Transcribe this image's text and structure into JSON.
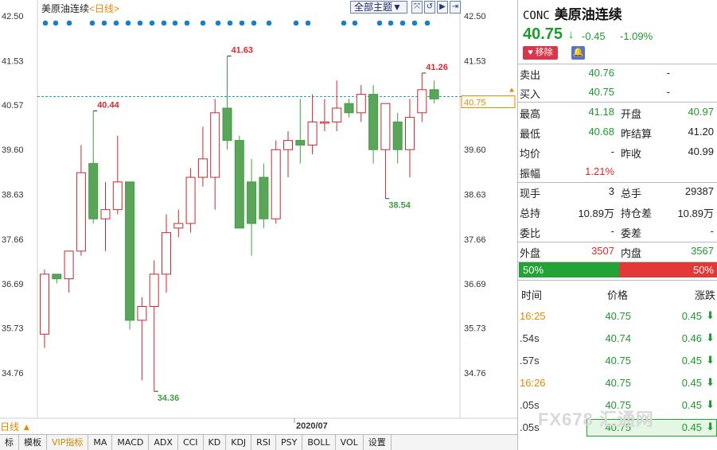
{
  "chart_header": {
    "name": "美原油连续",
    "period": "<日线>",
    "theme_select": "全部主题▼",
    "tools": [
      "⤧",
      "↺",
      "▶",
      "⇥"
    ]
  },
  "chart_data": {
    "type": "candlestick",
    "title": "美原油连续",
    "y_ticks": [
      42.5,
      41.53,
      40.57,
      39.6,
      38.63,
      37.66,
      36.69,
      35.73,
      34.76
    ],
    "ylim": [
      34.0,
      42.5
    ],
    "x_label": "2020/07",
    "current_price_line": 40.75,
    "current_price_label": "40.75",
    "annotations": [
      {
        "text": "41.63",
        "value": 41.63,
        "type": "high"
      },
      {
        "text": "40.44",
        "value": 40.44,
        "type": "high"
      },
      {
        "text": "41.26",
        "value": 41.26,
        "type": "high"
      },
      {
        "text": "34.36",
        "value": 34.36,
        "type": "low"
      },
      {
        "text": "38.54",
        "value": 38.54,
        "type": "low"
      }
    ],
    "candles": [
      {
        "o": 35.6,
        "h": 37.0,
        "l": 35.3,
        "c": 36.9
      },
      {
        "o": 36.9,
        "h": 36.9,
        "l": 36.7,
        "c": 36.8
      },
      {
        "o": 36.8,
        "h": 37.4,
        "l": 36.5,
        "c": 37.4
      },
      {
        "o": 37.4,
        "h": 39.7,
        "l": 37.3,
        "c": 39.1
      },
      {
        "o": 39.3,
        "h": 40.44,
        "l": 38.0,
        "c": 38.1
      },
      {
        "o": 38.1,
        "h": 38.9,
        "l": 37.4,
        "c": 38.3
      },
      {
        "o": 38.3,
        "h": 39.9,
        "l": 38.2,
        "c": 38.9
      },
      {
        "o": 38.9,
        "h": 38.9,
        "l": 35.7,
        "c": 35.9
      },
      {
        "o": 35.9,
        "h": 36.4,
        "l": 34.6,
        "c": 36.2
      },
      {
        "o": 36.2,
        "h": 37.2,
        "l": 34.36,
        "c": 36.9
      },
      {
        "o": 36.9,
        "h": 38.2,
        "l": 36.5,
        "c": 37.8
      },
      {
        "o": 37.9,
        "h": 38.3,
        "l": 37.7,
        "c": 38.0
      },
      {
        "o": 38.0,
        "h": 39.2,
        "l": 37.8,
        "c": 39.0
      },
      {
        "o": 39.0,
        "h": 40.1,
        "l": 38.8,
        "c": 39.4
      },
      {
        "o": 39.0,
        "h": 40.7,
        "l": 38.3,
        "c": 40.4
      },
      {
        "o": 40.5,
        "h": 41.63,
        "l": 39.6,
        "c": 39.8
      },
      {
        "o": 39.8,
        "h": 39.9,
        "l": 37.9,
        "c": 37.9
      },
      {
        "o": 38.9,
        "h": 39.4,
        "l": 37.3,
        "c": 38.0
      },
      {
        "o": 39.0,
        "h": 39.3,
        "l": 37.9,
        "c": 38.1
      },
      {
        "o": 38.1,
        "h": 39.8,
        "l": 38.0,
        "c": 39.6
      },
      {
        "o": 39.6,
        "h": 40.0,
        "l": 39.0,
        "c": 39.8
      },
      {
        "o": 39.8,
        "h": 40.7,
        "l": 39.3,
        "c": 39.7
      },
      {
        "o": 39.7,
        "h": 40.8,
        "l": 39.5,
        "c": 40.2
      },
      {
        "o": 40.2,
        "h": 40.7,
        "l": 40.0,
        "c": 40.2
      },
      {
        "o": 40.2,
        "h": 41.1,
        "l": 40.0,
        "c": 40.5
      },
      {
        "o": 40.6,
        "h": 40.7,
        "l": 40.3,
        "c": 40.4
      },
      {
        "o": 40.4,
        "h": 41.0,
        "l": 40.2,
        "c": 40.8
      },
      {
        "o": 40.8,
        "h": 41.0,
        "l": 39.3,
        "c": 39.6
      },
      {
        "o": 39.6,
        "h": 40.6,
        "l": 38.54,
        "c": 40.6
      },
      {
        "o": 40.2,
        "h": 40.4,
        "l": 39.3,
        "c": 39.6
      },
      {
        "o": 39.6,
        "h": 40.7,
        "l": 39.0,
        "c": 40.3
      },
      {
        "o": 40.4,
        "h": 41.26,
        "l": 40.2,
        "c": 40.9
      },
      {
        "o": 40.9,
        "h": 41.1,
        "l": 40.6,
        "c": 40.7
      }
    ]
  },
  "bottom_toolbar": {
    "daily_label": "日线 ▲",
    "items": [
      "标",
      "模板",
      "VIP指标",
      "MA",
      "MACD",
      "ADX",
      "CCI",
      "KD",
      "KDJ",
      "RSI",
      "PSY",
      "BOLL",
      "VOL",
      "设置"
    ]
  },
  "panel": {
    "code": "CONC",
    "name": "美原油连续",
    "price": "40.75",
    "arrow": "↓",
    "change": "-0.45",
    "change_pct": "-1.09%",
    "remove_btn": "♥ 移除",
    "bell_icon": "🔔",
    "sell": {
      "label": "卖出",
      "value": "40.76",
      "extra": "-"
    },
    "buy": {
      "label": "买入",
      "value": "40.75",
      "extra": "-"
    },
    "stats": [
      {
        "l1": "最高",
        "v1": "41.18",
        "c1": "green",
        "l2": "开盘",
        "v2": "40.97",
        "c2": "green"
      },
      {
        "l1": "最低",
        "v1": "40.68",
        "c1": "green",
        "l2": "昨结算",
        "v2": "41.20",
        "c2": "dark"
      },
      {
        "l1": "均价",
        "v1": "-",
        "c1": "dark",
        "l2": "昨收",
        "v2": "40.99",
        "c2": "dark"
      },
      {
        "l1": "振幅",
        "v1": "1.21%",
        "c1": "red",
        "l2": "",
        "v2": "",
        "c2": "dark"
      },
      {
        "l1": "现手",
        "v1": "3",
        "c1": "dark",
        "l2": "总手",
        "v2": "29387",
        "c2": "dark"
      },
      {
        "l1": "总持",
        "v1": "10.89万",
        "c1": "dark",
        "l2": "持仓差",
        "v2": "10.89万",
        "c2": "dark"
      },
      {
        "l1": "委比",
        "v1": "-",
        "c1": "dark",
        "l2": "委差",
        "v2": "-",
        "c2": "dark"
      },
      {
        "l1": "外盘",
        "v1": "3507",
        "c1": "red",
        "l2": "内盘",
        "v2": "3567",
        "c2": "green"
      }
    ],
    "buy_pct": "50%",
    "sell_pct": "50%",
    "tick_headers": {
      "time": "时间",
      "price": "价格",
      "change": "涨跌"
    },
    "ticks": [
      {
        "time": "16:25",
        "price": "40.75",
        "change": "0.45",
        "orange": true
      },
      {
        "time": ".54s",
        "price": "40.74",
        "change": "0.46",
        "orange": false
      },
      {
        "time": ".57s",
        "price": "40.75",
        "change": "0.45",
        "orange": false
      },
      {
        "time": "16:26",
        "price": "40.75",
        "change": "0.45",
        "orange": true
      },
      {
        "time": ".05s",
        "price": "40.75",
        "change": "0.45",
        "orange": false
      },
      {
        "time": ".05s",
        "price": "40.75",
        "change": "0.45",
        "orange": false
      }
    ],
    "watermark": "FX678 汇通网"
  }
}
